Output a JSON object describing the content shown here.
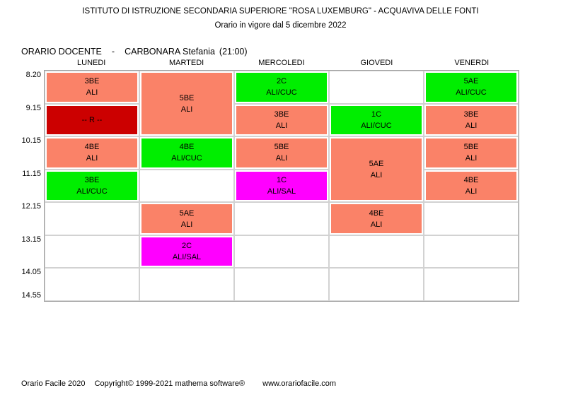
{
  "header": {
    "school": "ISTITUTO DI ISTRUZIONE SECONDARIA SUPERIORE \"ROSA LUXEMBURG\" - ACQUAVIVA DELLE FONTI",
    "effective": "Orario in vigore dal 5 dicembre 2022",
    "schedule_type": "ORARIO DOCENTE",
    "separator": "-",
    "teacher": "CARBONARA Stefania",
    "hours": "(21:00)"
  },
  "timetable": {
    "days": [
      "LUNEDI",
      "MARTEDI",
      "MERCOLEDI",
      "GIOVEDI",
      "VENERDI"
    ],
    "times": [
      "8.20",
      "9.15",
      "10.15",
      "11.15",
      "12.15",
      "13.15",
      "14.05"
    ],
    "end_time": "14.55",
    "num_rows": 7,
    "colors": {
      "salmon": "#FA8268",
      "green": "#00EE00",
      "magenta": "#FF00FF",
      "red": "#CC0000"
    },
    "cells": [
      {
        "day": 0,
        "row": 0,
        "span": 1,
        "color": "salmon",
        "line1": "3BE",
        "line2": "ALI"
      },
      {
        "day": 0,
        "row": 1,
        "span": 1,
        "color": "red",
        "line1": "-- R --",
        "line2": ""
      },
      {
        "day": 0,
        "row": 2,
        "span": 1,
        "color": "salmon",
        "line1": "4BE",
        "line2": "ALI"
      },
      {
        "day": 0,
        "row": 3,
        "span": 1,
        "color": "green",
        "line1": "3BE",
        "line2": "ALI/CUC"
      },
      {
        "day": 1,
        "row": 0,
        "span": 2,
        "color": "salmon",
        "line1": "5BE",
        "line2": "ALI"
      },
      {
        "day": 1,
        "row": 2,
        "span": 1,
        "color": "green",
        "line1": "4BE",
        "line2": "ALI/CUC"
      },
      {
        "day": 1,
        "row": 4,
        "span": 1,
        "color": "salmon",
        "line1": "5AE",
        "line2": "ALI"
      },
      {
        "day": 1,
        "row": 5,
        "span": 1,
        "color": "magenta",
        "line1": "2C",
        "line2": "ALI/SAL"
      },
      {
        "day": 2,
        "row": 0,
        "span": 1,
        "color": "green",
        "line1": "2C",
        "line2": "ALI/CUC"
      },
      {
        "day": 2,
        "row": 1,
        "span": 1,
        "color": "salmon",
        "line1": "3BE",
        "line2": "ALI"
      },
      {
        "day": 2,
        "row": 2,
        "span": 1,
        "color": "salmon",
        "line1": "5BE",
        "line2": "ALI"
      },
      {
        "day": 2,
        "row": 3,
        "span": 1,
        "color": "magenta",
        "line1": "1C",
        "line2": "ALI/SAL"
      },
      {
        "day": 3,
        "row": 1,
        "span": 1,
        "color": "green",
        "line1": "1C",
        "line2": "ALI/CUC"
      },
      {
        "day": 3,
        "row": 2,
        "span": 2,
        "color": "salmon",
        "line1": "5AE",
        "line2": "ALI"
      },
      {
        "day": 3,
        "row": 4,
        "span": 1,
        "color": "salmon",
        "line1": "4BE",
        "line2": "ALI"
      },
      {
        "day": 4,
        "row": 0,
        "span": 1,
        "color": "green",
        "line1": "5AE",
        "line2": "ALI/CUC"
      },
      {
        "day": 4,
        "row": 1,
        "span": 1,
        "color": "salmon",
        "line1": "3BE",
        "line2": "ALI"
      },
      {
        "day": 4,
        "row": 2,
        "span": 1,
        "color": "salmon",
        "line1": "5BE",
        "line2": "ALI"
      },
      {
        "day": 4,
        "row": 3,
        "span": 1,
        "color": "salmon",
        "line1": "4BE",
        "line2": "ALI"
      }
    ]
  },
  "footer": {
    "app": "Orario Facile 2020",
    "copyright": "Copyright© 1999-2021 mathema software®",
    "url": "www.orariofacile.com"
  }
}
